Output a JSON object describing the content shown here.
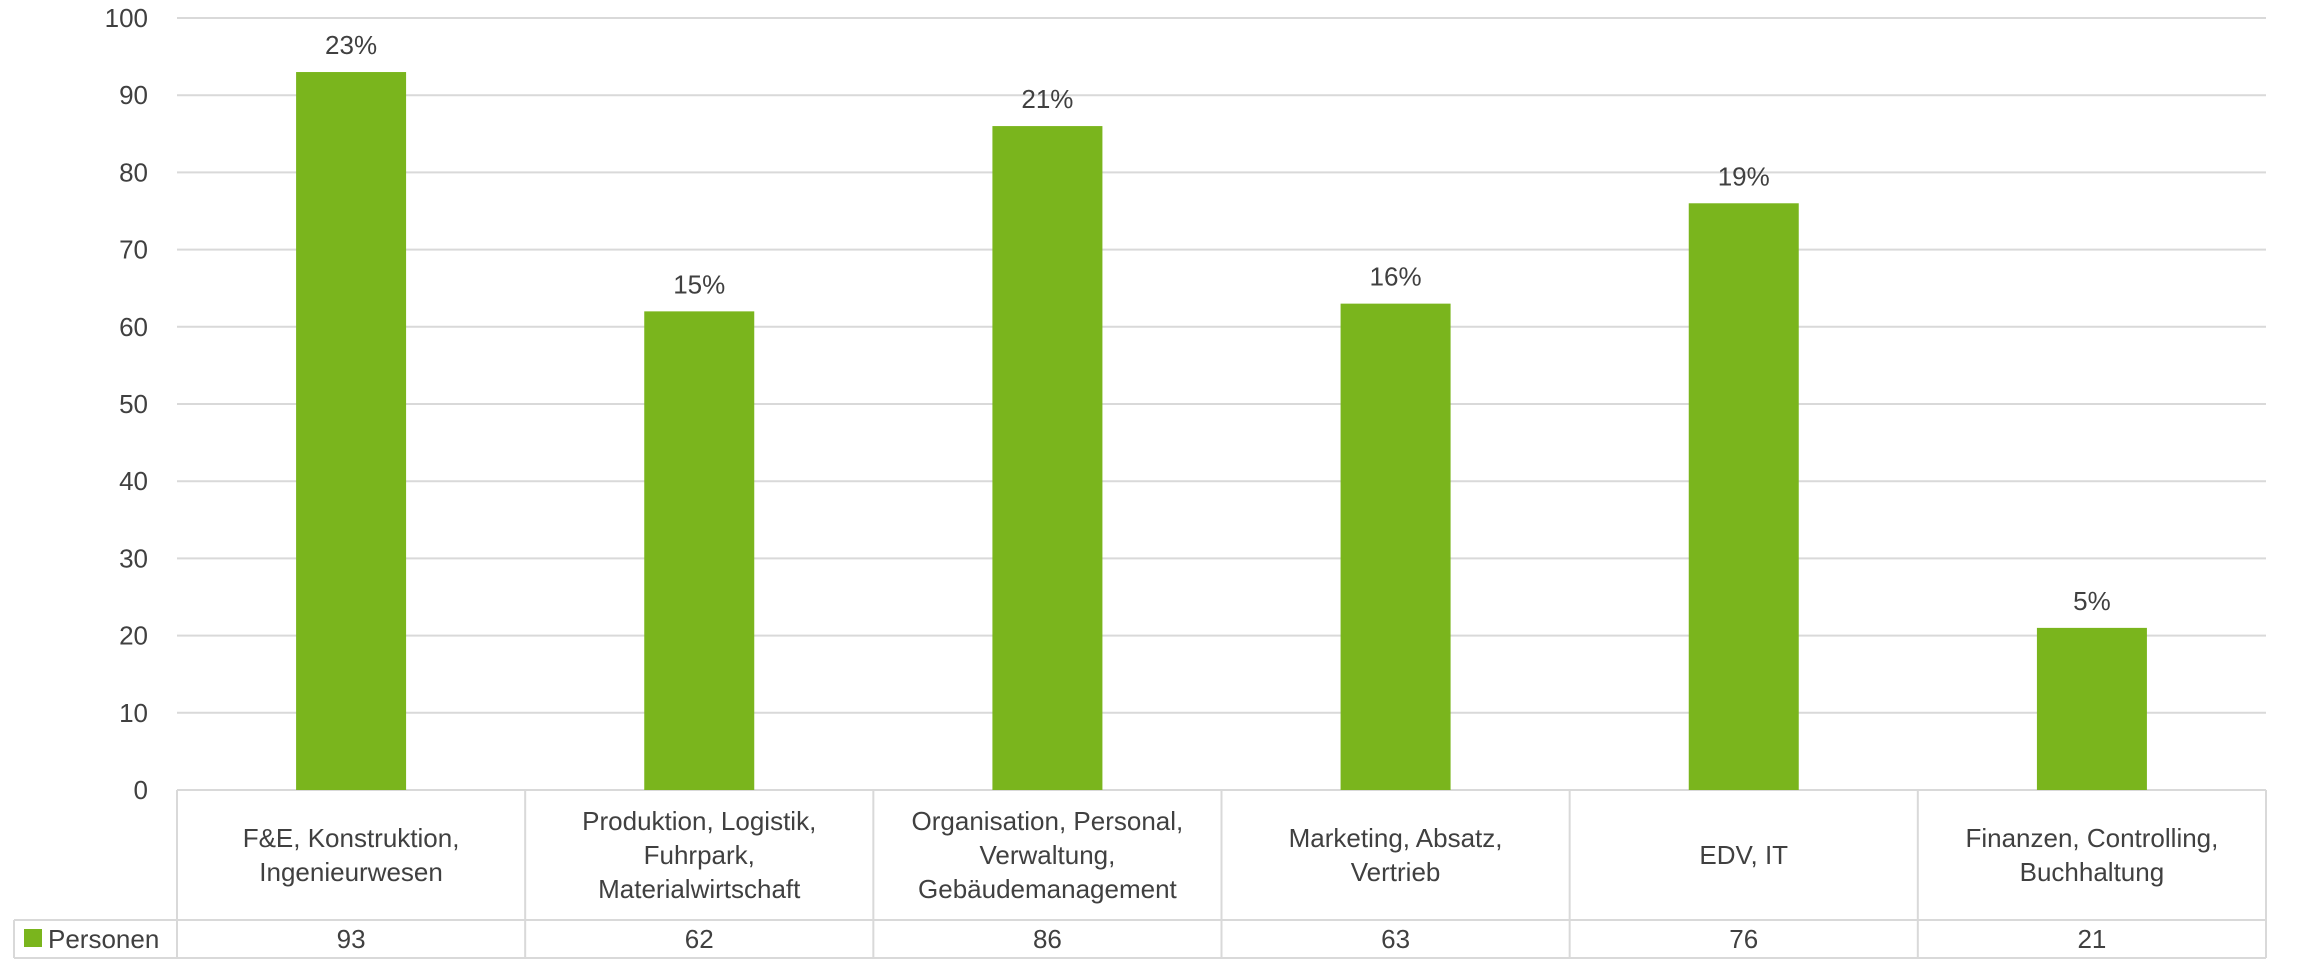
{
  "chart_data": {
    "type": "bar",
    "categories": [
      [
        "F&E, Konstruktion,",
        "Ingenieurwesen"
      ],
      [
        "Produktion, Logistik,",
        "Fuhrpark,",
        "Materialwirtschaft"
      ],
      [
        "Organisation, Personal,",
        "Verwaltung,",
        "Gebäudemanagement"
      ],
      [
        "Marketing, Absatz,",
        "Vertrieb"
      ],
      [
        "EDV, IT"
      ],
      [
        "Finanzen, Controlling,",
        "Buchhaltung"
      ]
    ],
    "series": [
      {
        "name": "Personen",
        "values": [
          93,
          62,
          86,
          63,
          76,
          21
        ],
        "color": "#7ab51d"
      }
    ],
    "data_labels": [
      "23%",
      "15%",
      "21%",
      "16%",
      "19%",
      "5%"
    ],
    "ylim": [
      0,
      100
    ],
    "yticks": [
      0,
      10,
      20,
      30,
      40,
      50,
      60,
      70,
      80,
      90,
      100
    ],
    "grid": true,
    "data_table": true,
    "gridline_color": "#d9d9d9"
  }
}
